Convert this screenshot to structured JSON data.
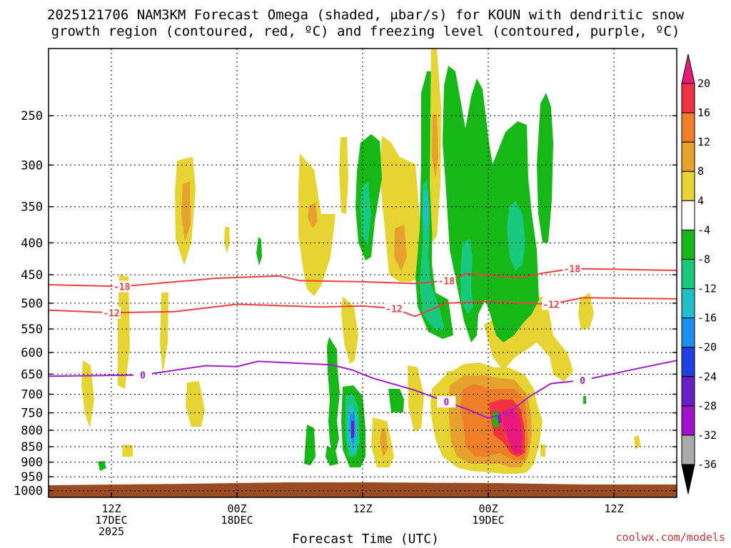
{
  "title_line1": "2025121706 NAM3KM Forecast Omega (shaded, μbar/s) for KOUN with dendritic snow",
  "title_line2": "growth region (contoured, red, ºC) and freezing level (contoured, purple, ºC)",
  "xlabel": "Forecast Time (UTC)",
  "credit": "coolwx.com/models",
  "chart_data": {
    "type": "heatmap",
    "title": "2025121706 NAM3KM Forecast Omega (shaded, μbar/s) for KOUN with dendritic snow growth region (contoured, red, ºC) and freezing level (contoured, purple, ºC)",
    "xlabel": "Forecast Time (UTC)",
    "ylabel": "",
    "x_range_hours_utc": [
      "2025-12-17 06Z",
      "2025-12-19 18Z"
    ],
    "y_axis": {
      "scale": "log-pressure",
      "reversed": true,
      "range_hPa": [
        1025,
        195
      ],
      "grid": "dotted"
    },
    "y_ticks": [
      250,
      300,
      350,
      400,
      450,
      500,
      550,
      600,
      650,
      700,
      750,
      800,
      850,
      900,
      950,
      1000
    ],
    "x_ticks": [
      {
        "time": "2025-12-17 12Z",
        "label": [
          "12Z",
          "17DEC",
          "2025"
        ]
      },
      {
        "time": "2025-12-18 00Z",
        "label": [
          "00Z",
          "18DEC"
        ]
      },
      {
        "time": "2025-12-18 12Z",
        "label": [
          "12Z"
        ]
      },
      {
        "time": "2025-12-19 00Z",
        "label": [
          "00Z",
          "19DEC"
        ]
      },
      {
        "time": "2025-12-19 12Z",
        "label": [
          "12Z"
        ]
      }
    ],
    "colorbar": {
      "unit": "μbar/s",
      "labels": [
        20,
        16,
        12,
        8,
        4,
        -4,
        -8,
        -12,
        -16,
        -20,
        -24,
        -28,
        -32,
        -36
      ],
      "bins": [
        {
          "range": "> 20",
          "color": "#e8187e"
        },
        {
          "range": "16 to 20",
          "color": "#ee3440"
        },
        {
          "range": "12 to 16",
          "color": "#ee7e28"
        },
        {
          "range": "8 to 12",
          "color": "#e6a22c"
        },
        {
          "range": "4 to 8",
          "color": "#e6d432"
        },
        {
          "range": "-4 to 4",
          "color": "#ffffff"
        },
        {
          "range": "-8 to -4",
          "color": "#16b818"
        },
        {
          "range": "-12 to -8",
          "color": "#18c87c"
        },
        {
          "range": "-16 to -12",
          "color": "#22bec8"
        },
        {
          "range": "-20 to -16",
          "color": "#1e8ef0"
        },
        {
          "range": "-24 to -20",
          "color": "#1e40e0"
        },
        {
          "range": "-28 to -24",
          "color": "#6a1ec8"
        },
        {
          "range": "-32 to -28",
          "color": "#a012c8"
        },
        {
          "range": "-36 to -32",
          "color": "#aaaaaa"
        },
        {
          "range": "< -36",
          "color": "#000000"
        }
      ]
    },
    "contours": [
      {
        "name": "-18",
        "color": "#ee4040",
        "points": [
          [
            "2025-12-17 06Z",
            467
          ],
          [
            "2025-12-17 13Z",
            470
          ],
          [
            "2025-12-17 22Z",
            456
          ],
          [
            "2025-12-18 04Z",
            452
          ],
          [
            "2025-12-18 06Z",
            460
          ],
          [
            "2025-12-18 12Z",
            462
          ],
          [
            "2025-12-18 17Z",
            465
          ],
          [
            "2025-12-18 20Z",
            460
          ],
          [
            "2025-12-18 22Z",
            448
          ],
          [
            "2025-12-19 03Z",
            455
          ],
          [
            "2025-12-19 05Z",
            448
          ],
          [
            "2025-12-19 08Z",
            440
          ],
          [
            "2025-12-19 12Z",
            441
          ],
          [
            "2025-12-19 18Z",
            443
          ]
        ]
      },
      {
        "name": "-12",
        "color": "#ee4040",
        "points": [
          [
            "2025-12-17 06Z",
            513
          ],
          [
            "2025-12-17 12Z",
            518
          ],
          [
            "2025-12-17 18Z",
            516
          ],
          [
            "2025-12-18 00Z",
            502
          ],
          [
            "2025-12-18 08Z",
            507
          ],
          [
            "2025-12-18 12Z",
            505
          ],
          [
            "2025-12-18 15Z",
            510
          ],
          [
            "2025-12-18 17Z",
            525
          ],
          [
            "2025-12-18 20Z",
            500
          ],
          [
            "2025-12-19 00Z",
            497
          ],
          [
            "2025-12-19 06Z",
            502
          ],
          [
            "2025-12-19 09Z",
            490
          ],
          [
            "2025-12-19 18Z",
            492
          ]
        ]
      },
      {
        "name": "0",
        "color": "#a020c8",
        "points": [
          [
            "2025-12-17 06Z",
            655
          ],
          [
            "2025-12-17 15Z",
            652
          ],
          [
            "2025-12-17 21Z",
            630
          ],
          [
            "2025-12-18 00Z",
            632
          ],
          [
            "2025-12-18 02Z",
            620
          ],
          [
            "2025-12-18 09Z",
            628
          ],
          [
            "2025-12-18 11Z",
            640
          ],
          [
            "2025-12-18 13Z",
            660
          ],
          [
            "2025-12-18 17Z",
            690
          ],
          [
            "2025-12-18 20Z",
            720
          ],
          [
            "2025-12-18 22Z",
            740
          ],
          [
            "2025-12-19 00Z",
            765
          ],
          [
            "2025-12-19 02Z",
            748
          ],
          [
            "2025-12-19 04Z",
            705
          ],
          [
            "2025-12-19 06Z",
            673
          ],
          [
            "2025-12-19 09Z",
            665
          ],
          [
            "2025-12-19 14Z",
            638
          ],
          [
            "2025-12-19 18Z",
            618
          ]
        ]
      }
    ],
    "ground": {
      "color": "#9b4b22",
      "top_hPa": 975
    }
  }
}
